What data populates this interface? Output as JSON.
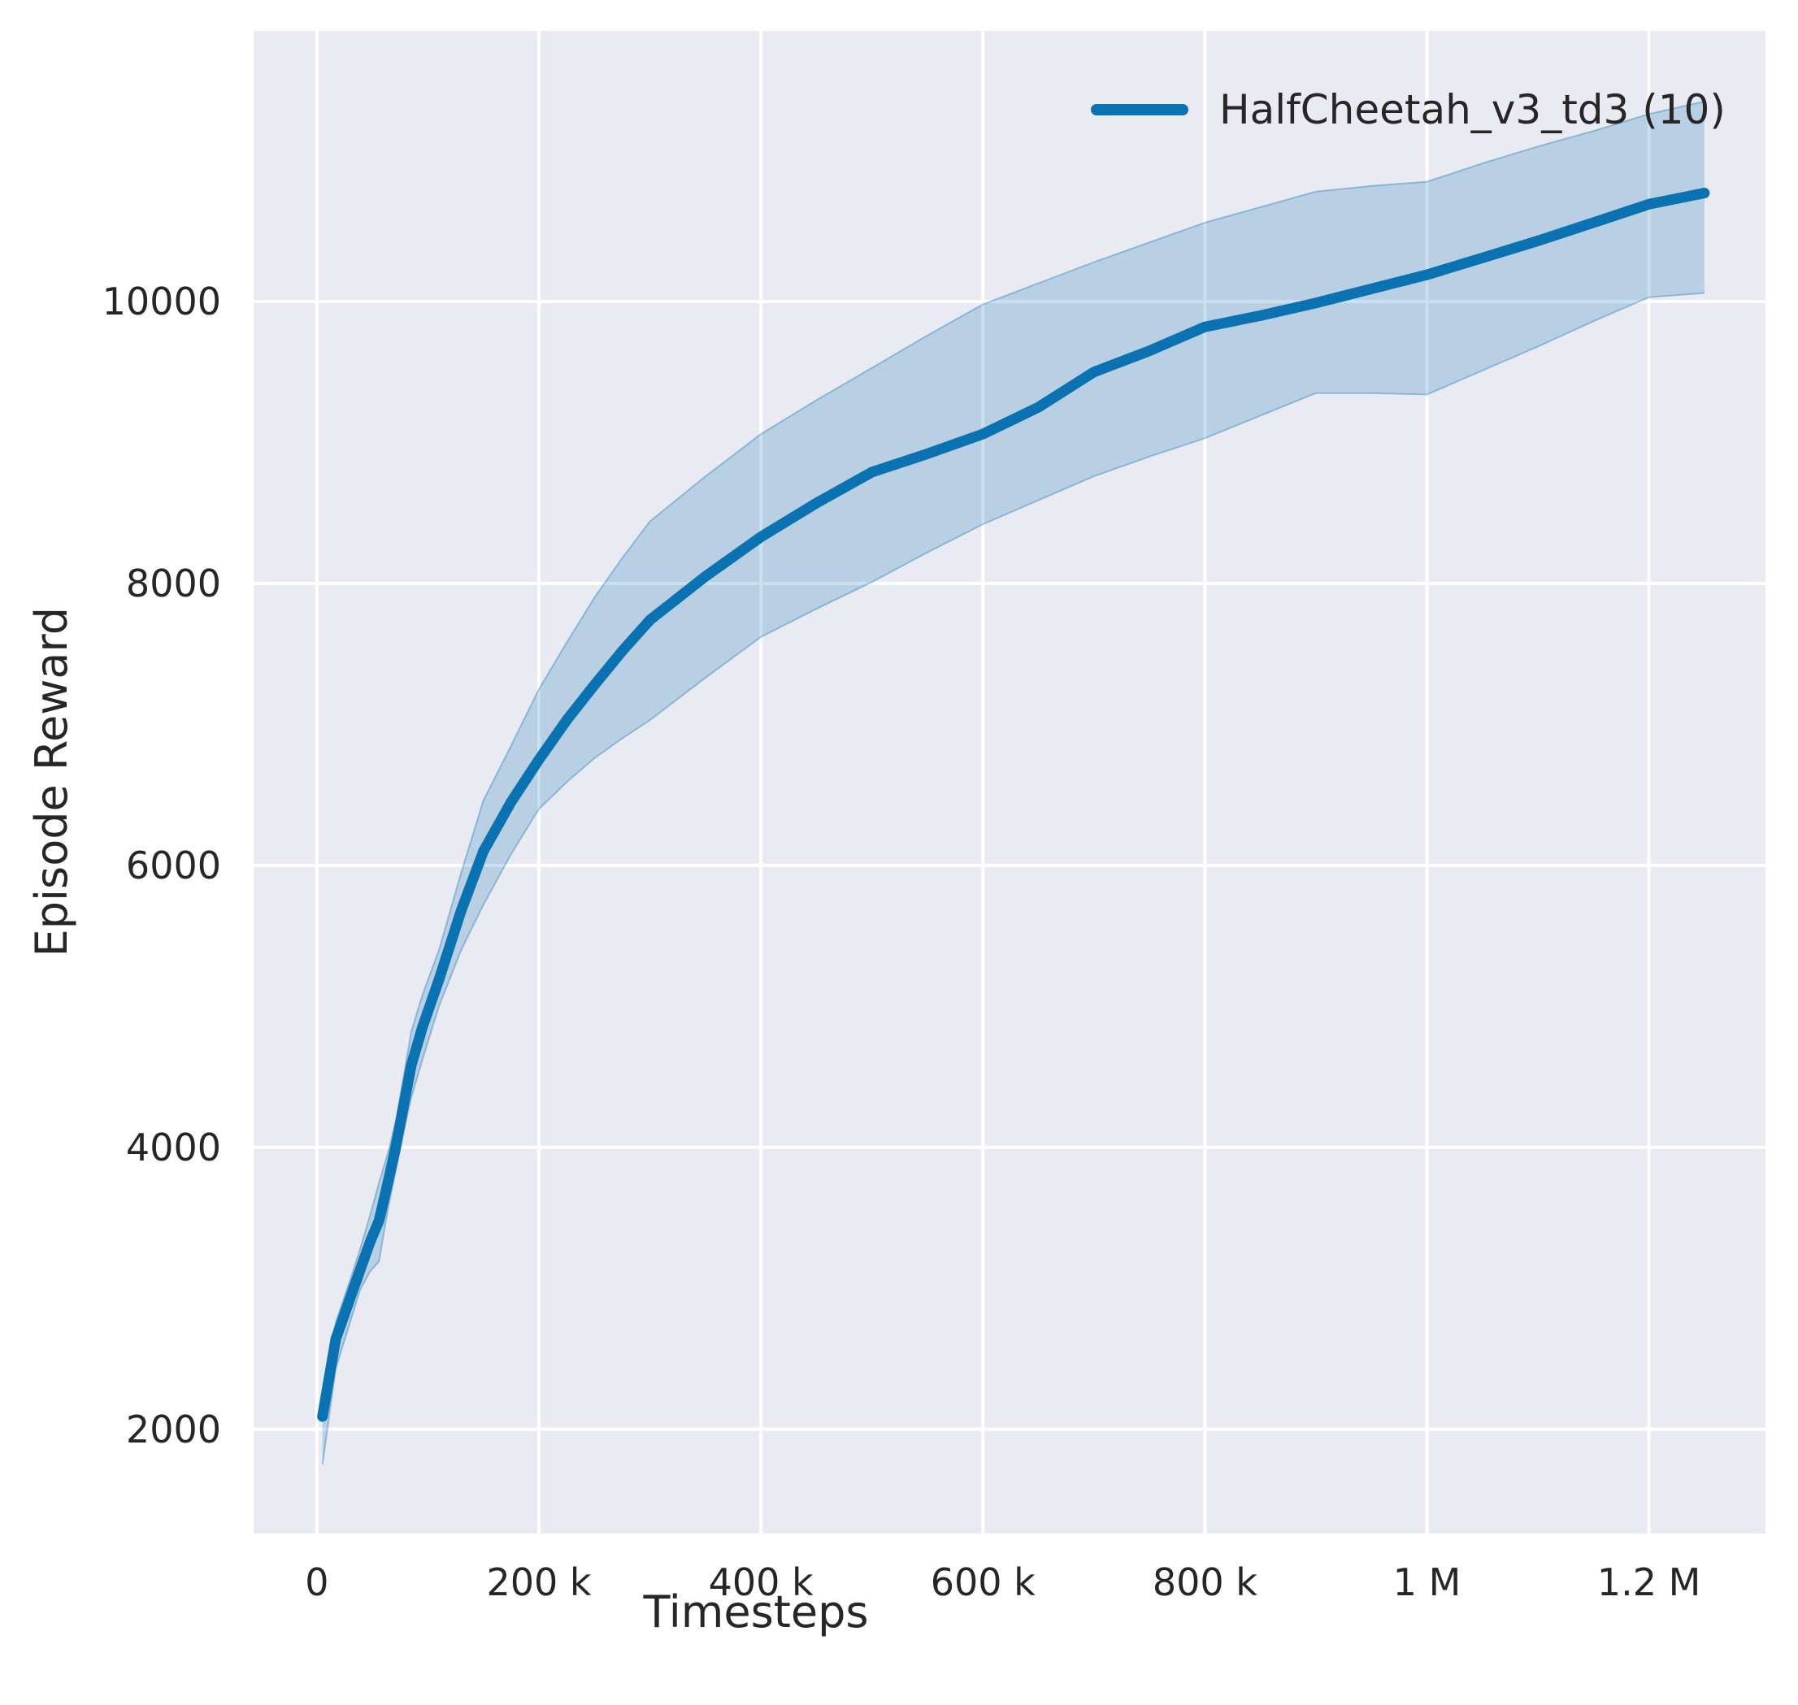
{
  "figure": {
    "page_bg": "#ffffff",
    "plot_bg": "#eaeaf2",
    "grid_color": "#ffffff",
    "text_color": "#262626",
    "line_color": "#0b72b2",
    "band_fill": "rgba(11,114,178,0.22)",
    "band_edge": "rgba(11,114,178,0.35)"
  },
  "axes": {
    "xlabel": "Timesteps",
    "ylabel": "Episode Reward"
  },
  "legend": {
    "label": "HalfCheetah_v3_td3 (10)"
  },
  "chart_data": {
    "type": "line",
    "title": "",
    "xlabel": "Timesteps",
    "ylabel": "Episode Reward",
    "legend_entries": [
      "HalfCheetah_v3_td3 (10)"
    ],
    "legend_position": "upper right",
    "grid": true,
    "xlim": [
      -57000,
      1305000
    ],
    "ylim": [
      1260,
      11920
    ],
    "x_ticks": [
      0,
      200000,
      400000,
      600000,
      800000,
      1000000,
      1200000
    ],
    "x_tick_labels": [
      "0",
      "200 k",
      "400 k",
      "600 k",
      "800 k",
      "1 M",
      "1.2 M"
    ],
    "y_ticks": [
      2000,
      4000,
      6000,
      8000,
      10000
    ],
    "y_tick_labels": [
      "2000",
      "4000",
      "6000",
      "8000",
      "10000"
    ],
    "series": [
      {
        "name": "HalfCheetah_v3_td3 (10)",
        "point_columns": [
          "timestep",
          "band_low",
          "mean",
          "band_high"
        ],
        "points": [
          [
            5000,
            1750,
            2090,
            2230
          ],
          [
            17000,
            2430,
            2640,
            2760
          ],
          [
            30000,
            2760,
            2930,
            3060
          ],
          [
            39000,
            2990,
            3130,
            3280
          ],
          [
            48000,
            3120,
            3330,
            3520
          ],
          [
            56000,
            3190,
            3480,
            3750
          ],
          [
            64000,
            3560,
            3750,
            3960
          ],
          [
            71000,
            3830,
            4000,
            4180
          ],
          [
            78000,
            4100,
            4290,
            4500
          ],
          [
            85000,
            4350,
            4580,
            4820
          ],
          [
            95000,
            4620,
            4850,
            5080
          ],
          [
            110000,
            5000,
            5190,
            5400
          ],
          [
            130000,
            5400,
            5680,
            5950
          ],
          [
            150000,
            5720,
            6100,
            6460
          ],
          [
            175000,
            6080,
            6450,
            6850
          ],
          [
            200000,
            6400,
            6750,
            7250
          ],
          [
            225000,
            6590,
            7030,
            7580
          ],
          [
            250000,
            6760,
            7280,
            7900
          ],
          [
            275000,
            6900,
            7520,
            8180
          ],
          [
            300000,
            7030,
            7740,
            8440
          ],
          [
            350000,
            7330,
            8050,
            8760
          ],
          [
            400000,
            7620,
            8330,
            9060
          ],
          [
            450000,
            7820,
            8570,
            9300
          ],
          [
            500000,
            8010,
            8790,
            9530
          ],
          [
            550000,
            8220,
            8920,
            9760
          ],
          [
            600000,
            8420,
            9060,
            9980
          ],
          [
            650000,
            8590,
            9250,
            10130
          ],
          [
            700000,
            8760,
            9500,
            10280
          ],
          [
            750000,
            8900,
            9650,
            10420
          ],
          [
            800000,
            9030,
            9820,
            10560
          ],
          [
            850000,
            9190,
            9900,
            10670
          ],
          [
            900000,
            9350,
            9990,
            10780
          ],
          [
            950000,
            9350,
            10090,
            10820
          ],
          [
            1000000,
            9340,
            10190,
            10850
          ],
          [
            1050000,
            9510,
            10310,
            10980
          ],
          [
            1100000,
            9680,
            10430,
            11100
          ],
          [
            1150000,
            9860,
            10560,
            11210
          ],
          [
            1200000,
            10030,
            10690,
            11330
          ],
          [
            1250000,
            10060,
            10770,
            11420
          ]
        ]
      }
    ]
  }
}
